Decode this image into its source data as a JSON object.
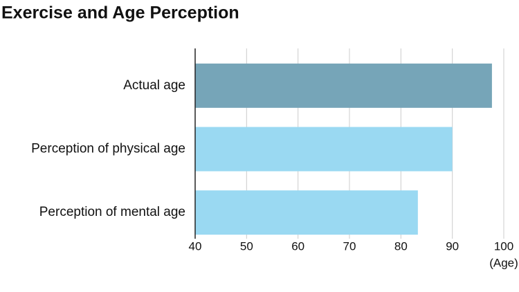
{
  "chart_data": {
    "type": "bar",
    "orientation": "horizontal",
    "title": "Exercise and Age Perception",
    "categories": [
      "Actual age",
      "Perception of physical age",
      "Perception of mental age"
    ],
    "values": [
      97.7,
      90,
      83.3
    ],
    "colors": [
      "#76a5b8",
      "#9ad9f2",
      "#9ad9f2"
    ],
    "xlim": [
      40,
      100
    ],
    "xticks": [
      40,
      50,
      60,
      70,
      80,
      90,
      100
    ],
    "x_label": "(Age)",
    "grid": true
  }
}
